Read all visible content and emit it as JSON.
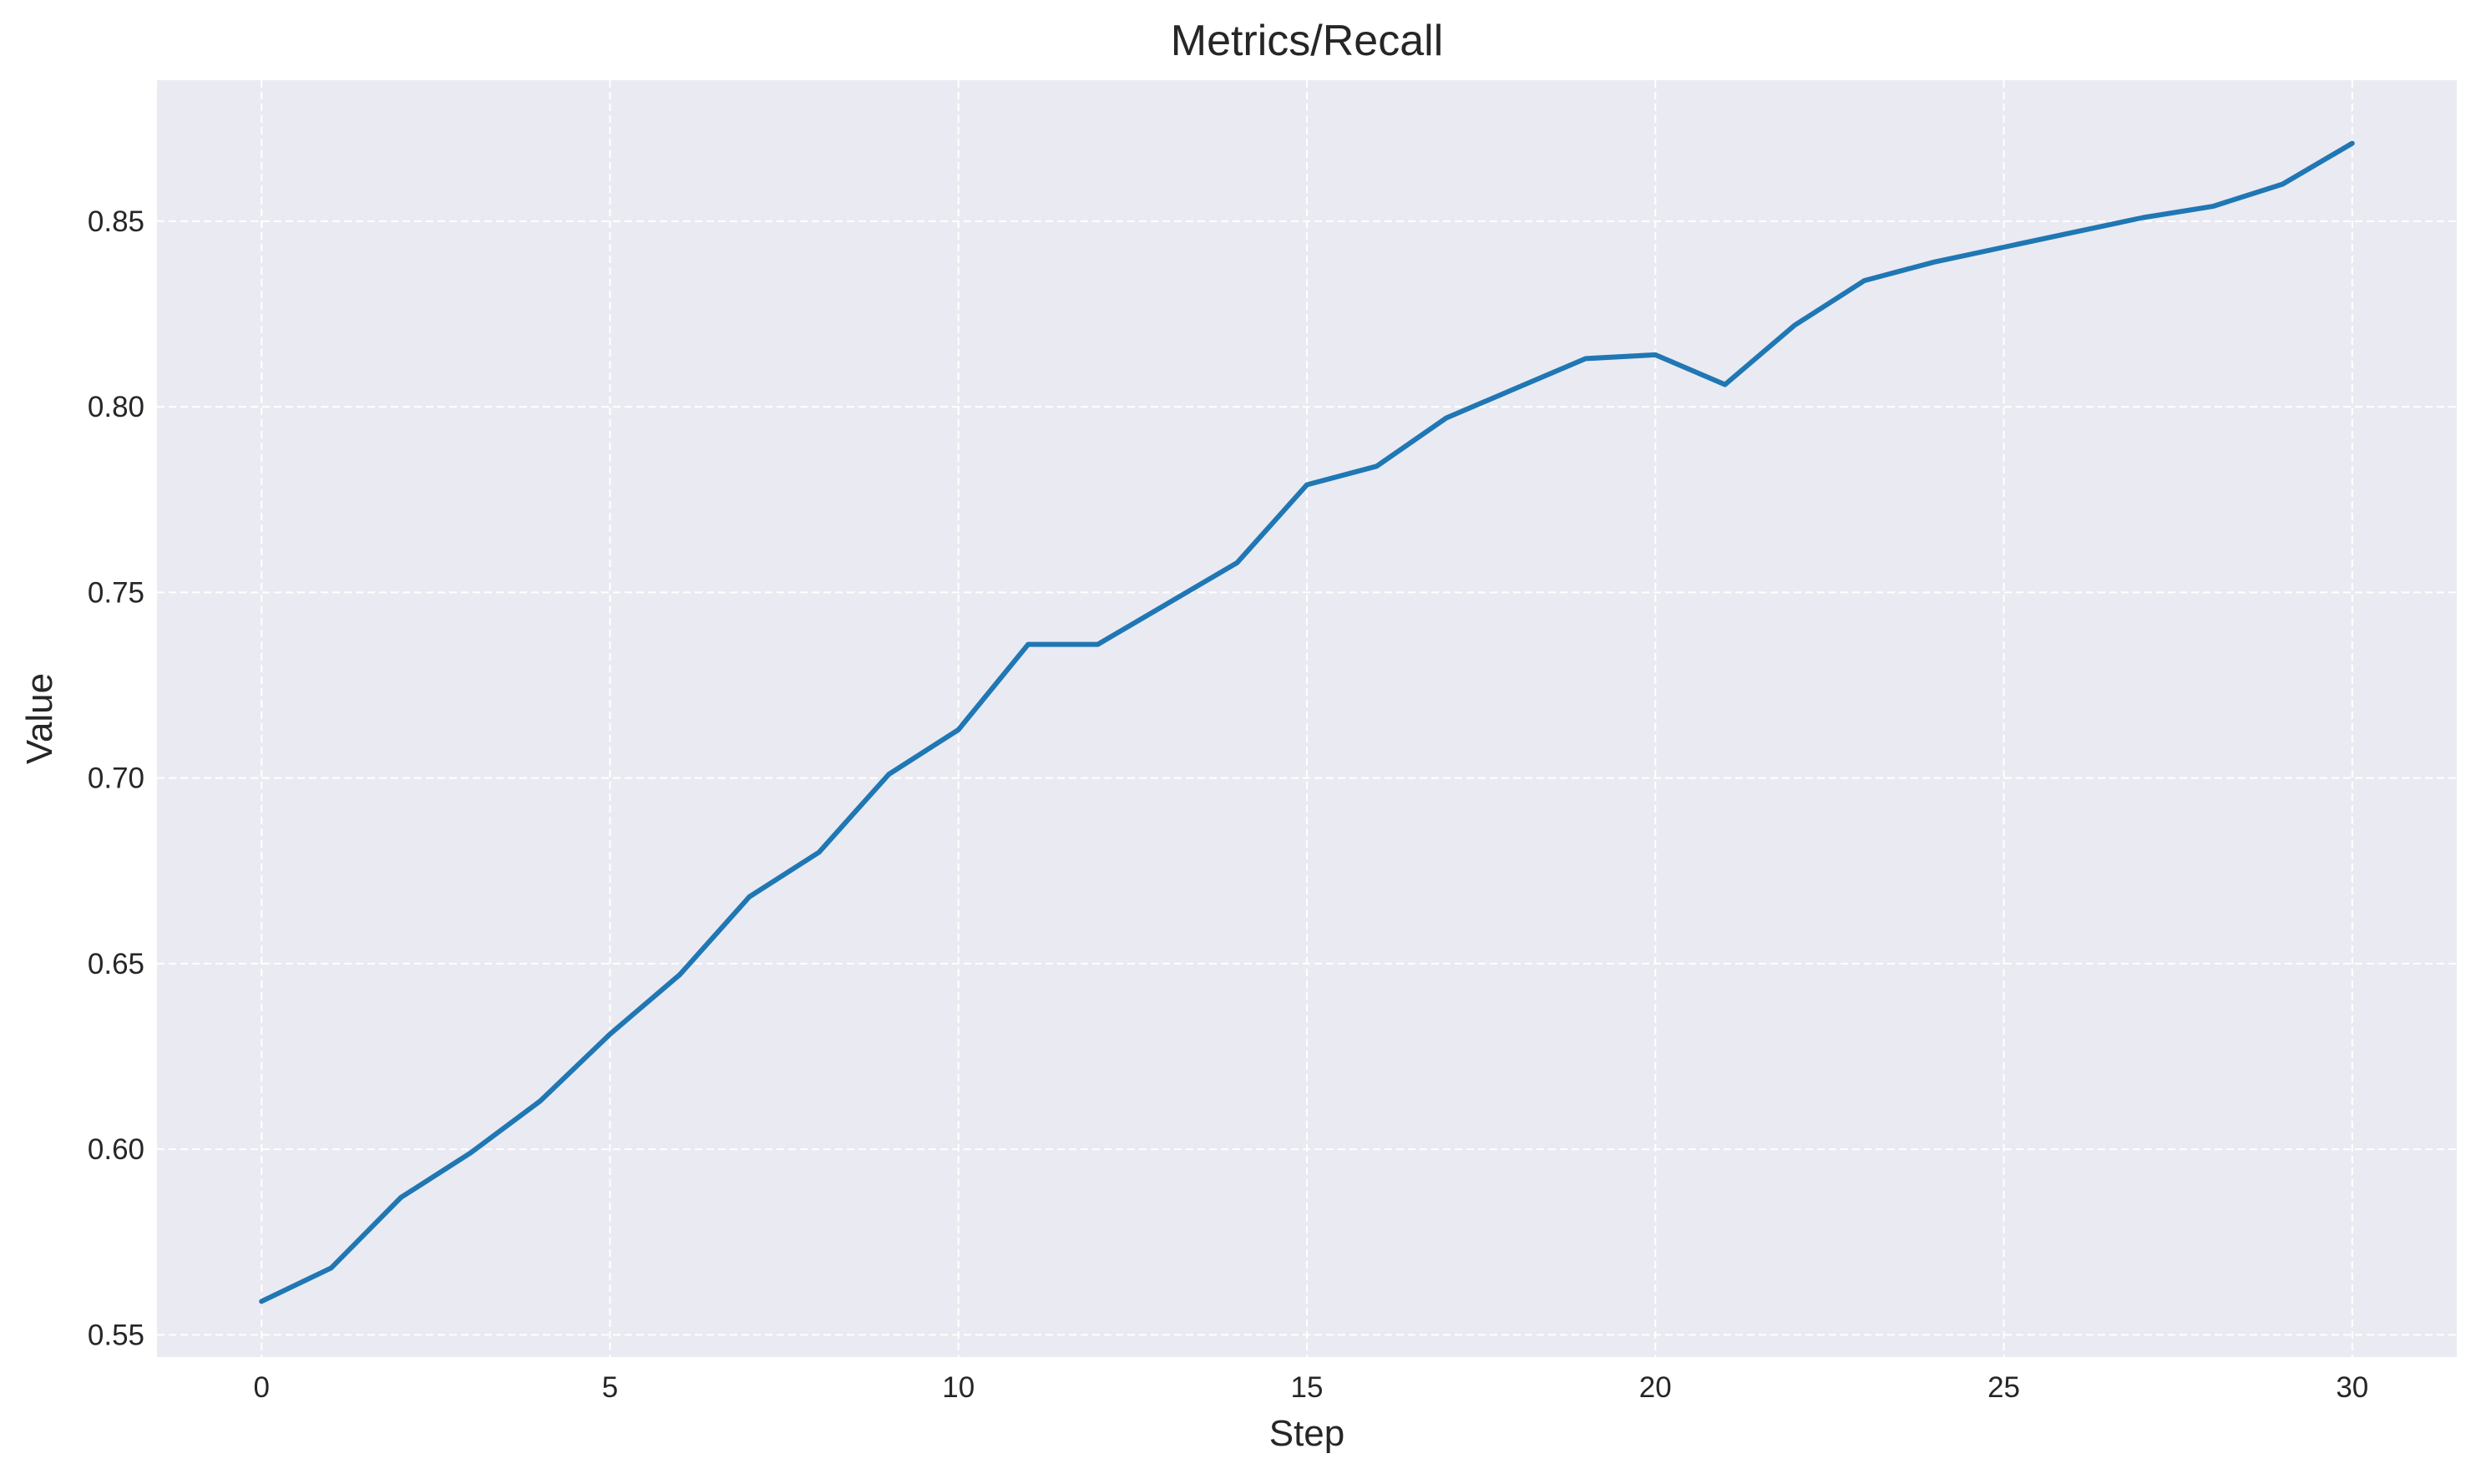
{
  "chart_data": {
    "type": "line",
    "title": "Metrics/Recall",
    "xlabel": "Step",
    "ylabel": "Value",
    "xlim": [
      -1.5,
      31.5
    ],
    "ylim": [
      0.544,
      0.888
    ],
    "xticks": [
      0,
      5,
      10,
      15,
      20,
      25,
      30
    ],
    "yticks": [
      0.55,
      0.6,
      0.65,
      0.7,
      0.75,
      0.8,
      0.85
    ],
    "ytick_labels": [
      "0.55",
      "0.60",
      "0.65",
      "0.70",
      "0.75",
      "0.80",
      "0.85"
    ],
    "grid": true,
    "grid_style": "dashed",
    "colors": {
      "plot_background": "#eaeaf2",
      "grid": "#ffffff",
      "line": "#1f77b4",
      "text": "#262626"
    },
    "series": [
      {
        "x": [
          0,
          1,
          2,
          3,
          4,
          5,
          6,
          7,
          8,
          9,
          10,
          11,
          12,
          13,
          14,
          15,
          16,
          17,
          18,
          19,
          20,
          21,
          22,
          23,
          24,
          25,
          26,
          27,
          28,
          29,
          30
        ],
        "values": [
          0.559,
          0.568,
          0.587,
          0.599,
          0.613,
          0.631,
          0.647,
          0.668,
          0.68,
          0.701,
          0.713,
          0.736,
          0.736,
          0.747,
          0.758,
          0.779,
          0.784,
          0.797,
          0.805,
          0.813,
          0.814,
          0.806,
          0.822,
          0.834,
          0.839,
          0.843,
          0.847,
          0.851,
          0.854,
          0.86,
          0.871
        ]
      }
    ]
  }
}
